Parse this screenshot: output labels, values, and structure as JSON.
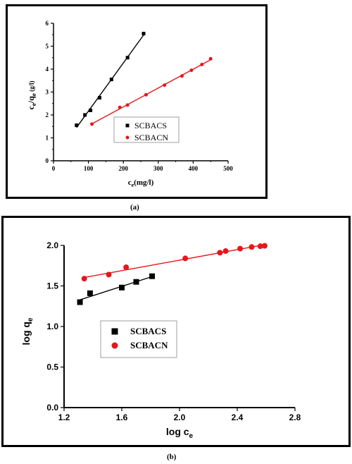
{
  "colors": {
    "series1": "#000000",
    "series2": "#e8151b"
  },
  "captions": {
    "a": "(a)",
    "b": "(b)"
  },
  "chart_data": [
    {
      "type": "scatter",
      "panel": "(a)",
      "title": "",
      "xlabel_main": "c",
      "xlabel_sub": "e",
      "xlabel_tail": "(mg/l)",
      "ylabel_main": "c",
      "ylabel_sub1": "e",
      "ylabel_mid": "/q",
      "ylabel_sub2": "e",
      "ylabel_unit": "(g/l)",
      "xlim": [
        0,
        500
      ],
      "ylim": [
        0,
        6
      ],
      "xticks": [
        0,
        100,
        200,
        300,
        400,
        500
      ],
      "yticks": [
        0,
        1,
        2,
        3,
        4,
        5,
        6
      ],
      "grid": false,
      "legend_position": "lower-right",
      "series": [
        {
          "name": "SCBACS",
          "marker": "square",
          "fit_line": true,
          "x": [
            66,
            90,
            106,
            132,
            166,
            212,
            258
          ],
          "y": [
            1.55,
            2.0,
            2.2,
            2.75,
            3.55,
            4.5,
            5.55
          ]
        },
        {
          "name": "SCBACN",
          "marker": "circle",
          "fit_line": true,
          "x": [
            110,
            190,
            212,
            265,
            318,
            368,
            395,
            425,
            450
          ],
          "y": [
            1.6,
            2.33,
            2.43,
            2.88,
            3.3,
            3.7,
            3.95,
            4.2,
            4.45
          ]
        }
      ]
    },
    {
      "type": "scatter",
      "panel": "(b)",
      "title": "",
      "xlabel_main": "log c",
      "xlabel_sub": "e",
      "ylabel_main": "log q",
      "ylabel_sub": "e",
      "xlim": [
        1.2,
        2.8
      ],
      "ylim": [
        0.0,
        2.0
      ],
      "xticks": [
        "1.2",
        "1.6",
        "2.0",
        "2.4",
        "2.8"
      ],
      "yticks": [
        "0.0",
        "0.5",
        "1.0",
        "1.5",
        "2.0"
      ],
      "grid": false,
      "legend_position": "center-left",
      "series": [
        {
          "name": "SCBACS",
          "marker": "square",
          "fit_line": true,
          "x": [
            1.31,
            1.38,
            1.6,
            1.7,
            1.81
          ],
          "y": [
            1.3,
            1.41,
            1.48,
            1.55,
            1.62
          ]
        },
        {
          "name": "SCBACN",
          "marker": "circle",
          "fit_line": true,
          "x": [
            1.34,
            1.51,
            1.63,
            2.04,
            2.28,
            2.32,
            2.42,
            2.5,
            2.56,
            2.59
          ],
          "y": [
            1.59,
            1.64,
            1.73,
            1.84,
            1.91,
            1.93,
            1.96,
            1.98,
            1.99,
            1.995
          ]
        }
      ]
    }
  ]
}
